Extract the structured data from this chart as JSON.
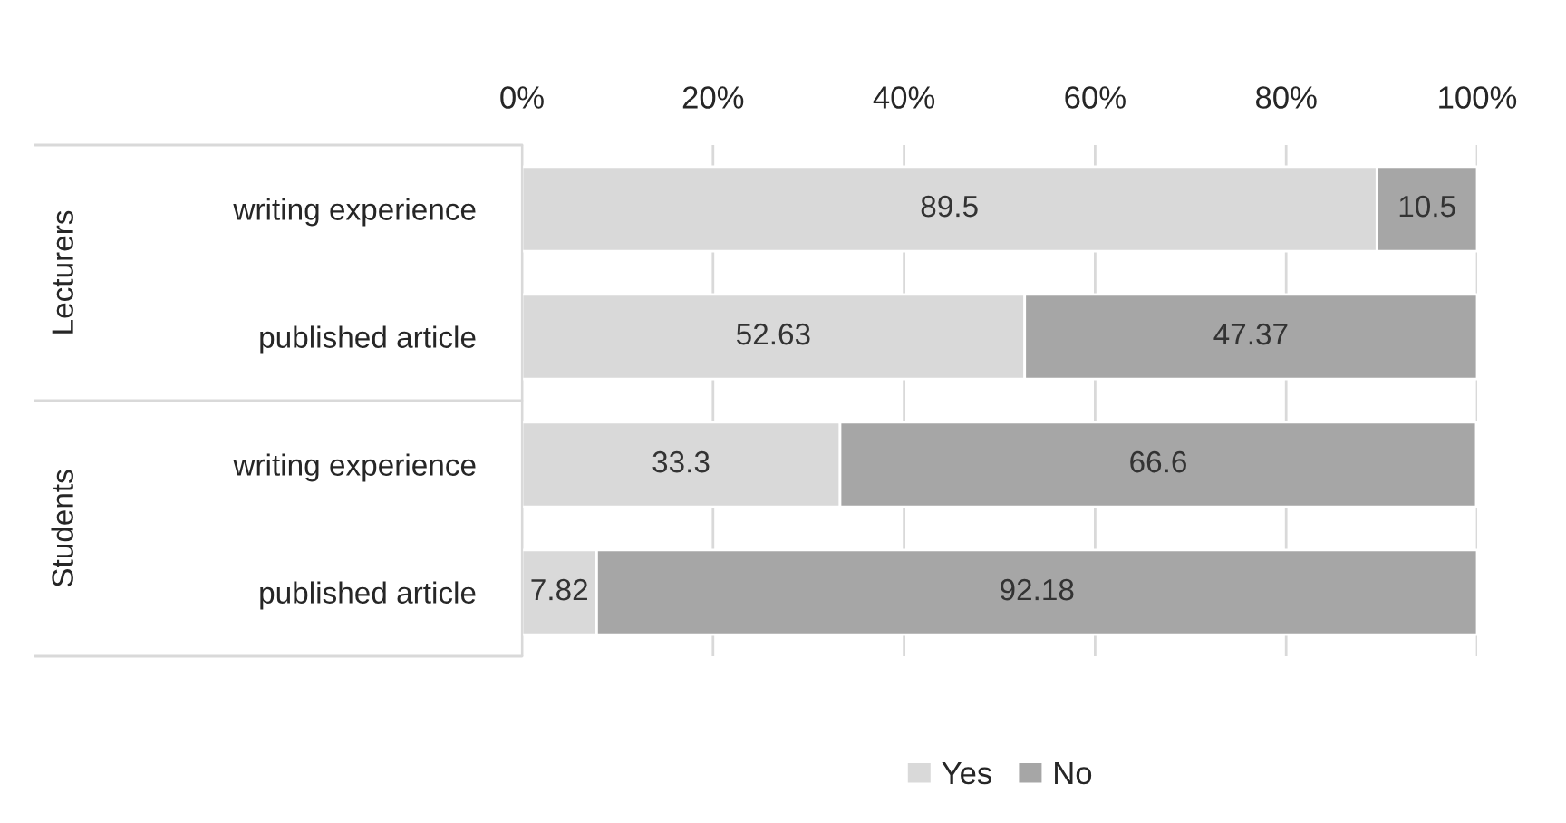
{
  "chart_data": {
    "type": "bar",
    "orientation": "horizontal",
    "stacked": true,
    "categories": [
      "writing experience",
      "published article",
      "writing experience",
      "published article"
    ],
    "series": [
      {
        "name": "Yes",
        "color": "#d9d9d9",
        "values": [
          89.5,
          52.63,
          33.3,
          7.82
        ]
      },
      {
        "name": "No",
        "color": "#a6a6a6",
        "values": [
          10.5,
          47.37,
          66.6,
          92.18
        ]
      }
    ],
    "annotations": [
      "Lecturers",
      "Students"
    ],
    "xlim": [
      0,
      100
    ],
    "xticks": [
      {
        "value": 0,
        "label": "0%"
      },
      {
        "value": 20,
        "label": "20%"
      },
      {
        "value": 40,
        "label": "40%"
      },
      {
        "value": 60,
        "label": "60%"
      },
      {
        "value": 80,
        "label": "80%"
      },
      {
        "value": 100,
        "label": "100%"
      }
    ],
    "grid": "x",
    "legend": "bottom",
    "data_labels": true
  }
}
